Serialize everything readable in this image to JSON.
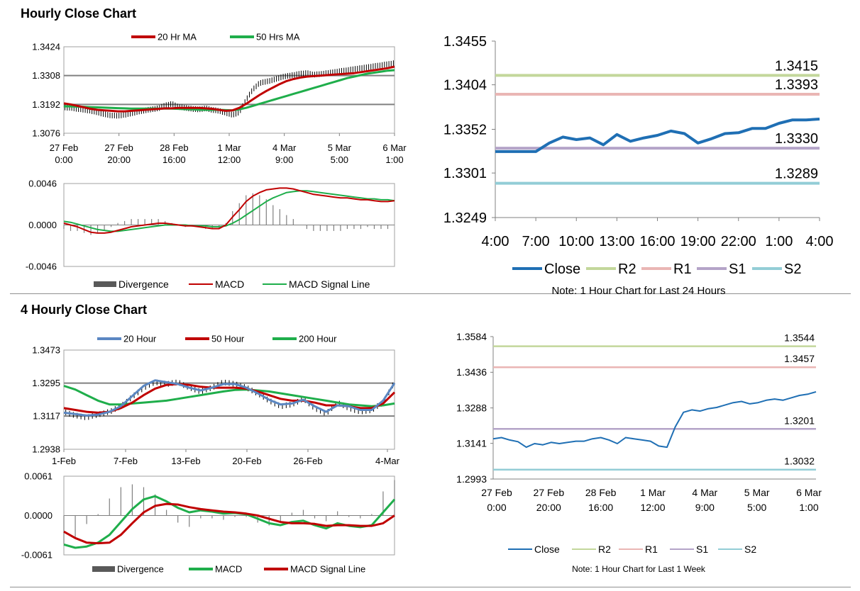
{
  "titles": {
    "hourly": "Hourly Close Chart",
    "four_hourly": "4 Hourly Close Chart"
  },
  "colors": {
    "red": "#c00000",
    "green": "#1fae4b",
    "blue": "#1f6fb4",
    "steel": "#5b87c2",
    "r2": "#c3d79b",
    "r1": "#eab6b4",
    "s1": "#b4a4c8",
    "s2": "#93cdd6",
    "divergence": "#595959"
  },
  "chart_data": [
    {
      "id": "hourly_price",
      "type": "line",
      "legend": [
        "20 Hr MA",
        "50 Hrs MA"
      ],
      "yticks": [
        "1.3424",
        "1.3308",
        "1.3192",
        "1.3076"
      ],
      "ylim": [
        1.3076,
        1.3424
      ],
      "xticks": [
        [
          "27 Feb",
          "0:00"
        ],
        [
          "27 Feb",
          "20:00"
        ],
        [
          "28 Feb",
          "16:00"
        ],
        [
          "1 Mar",
          "12:00"
        ],
        [
          "4 Mar",
          "9:00"
        ],
        [
          "5 Mar",
          "5:00"
        ],
        [
          "6 Mar",
          "1:00"
        ]
      ],
      "series": [
        {
          "name": "Close",
          "values": [
            1.318,
            1.3178,
            1.3174,
            1.317,
            1.3166,
            1.316,
            1.3152,
            1.3148,
            1.3146,
            1.315,
            1.3156,
            1.3162,
            1.3168,
            1.3172,
            1.3176,
            1.3188,
            1.3194,
            1.3182,
            1.3178,
            1.3174,
            1.3172,
            1.3176,
            1.317,
            1.3166,
            1.3158,
            1.315,
            1.316,
            1.321,
            1.3252,
            1.3278,
            1.3284,
            1.329,
            1.33,
            1.3306,
            1.331,
            1.3316,
            1.3318,
            1.3312,
            1.3314,
            1.3318,
            1.3322,
            1.3326,
            1.333,
            1.3334,
            1.3338,
            1.3342,
            1.3346,
            1.335,
            1.3354,
            1.3358
          ]
        },
        {
          "name": "20 Hr MA",
          "values": [
            1.3196,
            1.3192,
            1.3186,
            1.318,
            1.3174,
            1.317,
            1.3168,
            1.3166,
            1.3164,
            1.3164,
            1.3166,
            1.3168,
            1.317,
            1.3172,
            1.3174,
            1.3176,
            1.3176,
            1.3178,
            1.3178,
            1.3178,
            1.3178,
            1.3176,
            1.3174,
            1.317,
            1.3166,
            1.3168,
            1.3178,
            1.3194,
            1.3212,
            1.323,
            1.3246,
            1.326,
            1.3274,
            1.3286,
            1.3294,
            1.33,
            1.3304,
            1.3306,
            1.3308,
            1.331,
            1.3312,
            1.3314,
            1.3316,
            1.3318,
            1.3322,
            1.3326,
            1.333,
            1.3334,
            1.3338,
            1.3344
          ]
        },
        {
          "name": "50 Hrs MA",
          "values": [
            1.3184,
            1.3184,
            1.3183,
            1.3182,
            1.3181,
            1.318,
            1.3179,
            1.3178,
            1.3177,
            1.3176,
            1.3175,
            1.3175,
            1.3175,
            1.3175,
            1.3175,
            1.3175,
            1.3175,
            1.3174,
            1.3173,
            1.3172,
            1.3171,
            1.317,
            1.317,
            1.317,
            1.3169,
            1.3168,
            1.3172,
            1.3178,
            1.3186,
            1.3194,
            1.3202,
            1.321,
            1.3218,
            1.3226,
            1.3234,
            1.3242,
            1.325,
            1.3258,
            1.3266,
            1.3274,
            1.3282,
            1.329,
            1.3298,
            1.3304,
            1.331,
            1.3316,
            1.332,
            1.3324,
            1.3328,
            1.333
          ]
        }
      ]
    },
    {
      "id": "hourly_macd",
      "type": "line",
      "legend": [
        "Divergence",
        "MACD",
        "MACD Signal Line"
      ],
      "yticks": [
        "0.0046",
        "0.0000",
        "-0.0046"
      ],
      "ylim": [
        -0.0046,
        0.0046
      ],
      "series": [
        {
          "name": "MACD",
          "values": [
            0.0002,
            0.0,
            -0.0002,
            -0.0005,
            -0.0008,
            -0.0009,
            -0.0009,
            -0.0008,
            -0.0006,
            -0.0004,
            -0.0002,
            -0.0001,
            0.0,
            0.0001,
            0.0002,
            0.0002,
            0.0001,
            0.0,
            -0.0001,
            -0.0001,
            -0.0002,
            -0.0003,
            -0.0004,
            -0.0004,
            0.0,
            0.0009,
            0.0017,
            0.0026,
            0.0032,
            0.0036,
            0.0039,
            0.004,
            0.0041,
            0.0041,
            0.004,
            0.0038,
            0.0036,
            0.0034,
            0.0033,
            0.0032,
            0.0031,
            0.003,
            0.003,
            0.0029,
            0.0028,
            0.0028,
            0.0027,
            0.0026,
            0.0026,
            0.0027
          ]
        },
        {
          "name": "MACD Signal Line",
          "values": [
            0.0004,
            0.0003,
            0.0001,
            -0.0001,
            -0.0003,
            -0.0005,
            -0.0006,
            -0.0007,
            -0.0007,
            -0.0006,
            -0.0005,
            -0.0004,
            -0.0003,
            -0.0002,
            -0.0001,
            0.0,
            0.0,
            0.0,
            0.0,
            -0.0001,
            -0.0001,
            -0.0001,
            -0.0002,
            -0.0002,
            -0.0001,
            0.0002,
            0.0006,
            0.0011,
            0.0016,
            0.0021,
            0.0026,
            0.003,
            0.0033,
            0.0036,
            0.0037,
            0.0038,
            0.0038,
            0.0037,
            0.0036,
            0.0035,
            0.0034,
            0.0033,
            0.0032,
            0.0031,
            0.003,
            0.0029,
            0.0029,
            0.0028,
            0.0028,
            0.0027
          ]
        }
      ]
    },
    {
      "id": "hourly_24h",
      "type": "line",
      "legend": [
        "Close",
        "R2",
        "R1",
        "S1",
        "S2"
      ],
      "note": "Note: 1 Hour Chart for Last 24 Hours",
      "yticks": [
        "1.3455",
        "1.3404",
        "1.3352",
        "1.3301",
        "1.3249"
      ],
      "ylim": [
        1.3249,
        1.3455
      ],
      "xticks": [
        "4:00",
        "7:00",
        "10:00",
        "13:00",
        "16:00",
        "19:00",
        "22:00",
        "1:00",
        "4:00"
      ],
      "levels": {
        "R2": "1.3415",
        "R1": "1.3393",
        "S1": "1.3330",
        "S2": "1.3289"
      },
      "series": [
        {
          "name": "Close",
          "values": [
            1.3326,
            1.3326,
            1.3326,
            1.3326,
            1.3336,
            1.3343,
            1.334,
            1.3342,
            1.3334,
            1.3346,
            1.3338,
            1.3342,
            1.3345,
            1.335,
            1.3347,
            1.3336,
            1.3341,
            1.3347,
            1.3348,
            1.3353,
            1.3353,
            1.3359,
            1.3363,
            1.3363,
            1.3364
          ]
        }
      ]
    },
    {
      "id": "four_hourly_price",
      "type": "line",
      "legend": [
        "20 Hour",
        "50 Hour",
        "200 Hour"
      ],
      "yticks": [
        "1.3473",
        "1.3295",
        "1.3117",
        "1.2938"
      ],
      "ylim": [
        1.2938,
        1.3473
      ],
      "xticks": [
        "1-Feb",
        "7-Feb",
        "13-Feb",
        "20-Feb",
        "26-Feb",
        "4-Mar"
      ],
      "series": [
        {
          "name": "Close",
          "values": [
            1.314,
            1.312,
            1.311,
            1.3125,
            1.314,
            1.317,
            1.322,
            1.327,
            1.33,
            1.329,
            1.33,
            1.327,
            1.325,
            1.327,
            1.33,
            1.329,
            1.327,
            1.324,
            1.32,
            1.317,
            1.318,
            1.321,
            1.316,
            1.313,
            1.319,
            1.316,
            1.314,
            1.315,
            1.319,
            1.33
          ]
        },
        {
          "name": "20 Hour",
          "values": [
            1.3135,
            1.3128,
            1.312,
            1.3125,
            1.314,
            1.317,
            1.3225,
            1.328,
            1.331,
            1.33,
            1.329,
            1.327,
            1.3255,
            1.327,
            1.329,
            1.329,
            1.327,
            1.324,
            1.3205,
            1.318,
            1.3185,
            1.3205,
            1.317,
            1.314,
            1.3175,
            1.317,
            1.315,
            1.315,
            1.32,
            1.3295
          ]
        },
        {
          "name": "50 Hour",
          "values": [
            1.316,
            1.315,
            1.314,
            1.3135,
            1.314,
            1.316,
            1.319,
            1.323,
            1.3265,
            1.3285,
            1.329,
            1.3285,
            1.3275,
            1.327,
            1.327,
            1.327,
            1.3265,
            1.325,
            1.323,
            1.321,
            1.32,
            1.32,
            1.319,
            1.3175,
            1.3175,
            1.317,
            1.316,
            1.316,
            1.3185,
            1.3245
          ]
        },
        {
          "name": "200 Hour",
          "values": [
            1.328,
            1.326,
            1.323,
            1.32,
            1.318,
            1.318,
            1.3185,
            1.319,
            1.3195,
            1.32,
            1.321,
            1.322,
            1.323,
            1.324,
            1.325,
            1.3258,
            1.326,
            1.3255,
            1.325,
            1.324,
            1.323,
            1.322,
            1.321,
            1.32,
            1.319,
            1.318,
            1.3175,
            1.317,
            1.3175,
            1.3185
          ]
        }
      ]
    },
    {
      "id": "four_hourly_macd",
      "type": "line",
      "legend": [
        "Divergence",
        "MACD",
        "MACD Signal Line"
      ],
      "yticks": [
        "0.0061",
        "0.0000",
        "-0.0061"
      ],
      "ylim": [
        -0.0061,
        0.0061
      ],
      "series": [
        {
          "name": "MACD",
          "values": [
            -0.0045,
            -0.005,
            -0.0048,
            -0.0042,
            -0.003,
            -0.001,
            0.001,
            0.0025,
            0.003,
            0.0022,
            0.0012,
            0.0005,
            0.0008,
            0.0006,
            0.0003,
            0.0004,
            0.0002,
            -0.0005,
            -0.0012,
            -0.0015,
            -0.001,
            -0.0008,
            -0.0015,
            -0.002,
            -0.0012,
            -0.0016,
            -0.0018,
            -0.0015,
            0.0005,
            0.0025
          ]
        },
        {
          "name": "MACD Signal Line",
          "values": [
            -0.0025,
            -0.0035,
            -0.0042,
            -0.0043,
            -0.0042,
            -0.003,
            -0.0012,
            0.0005,
            0.0015,
            0.0018,
            0.0017,
            0.0013,
            0.001,
            0.0008,
            0.0006,
            0.0005,
            0.0003,
            0.0,
            -0.0005,
            -0.001,
            -0.0012,
            -0.0012,
            -0.0013,
            -0.0016,
            -0.0015,
            -0.0015,
            -0.0016,
            -0.0016,
            -0.0012,
            0.0
          ]
        }
      ]
    },
    {
      "id": "four_hourly_week",
      "type": "line",
      "legend": [
        "Close",
        "R2",
        "R1",
        "S1",
        "S2"
      ],
      "note": "Note: 1 Hour Chart for  Last 1 Week",
      "yticks": [
        "1.3584",
        "1.3436",
        "1.3288",
        "1.3141",
        "1.2993"
      ],
      "ylim": [
        1.2993,
        1.3584
      ],
      "xticks": [
        [
          "27 Feb",
          "0:00"
        ],
        [
          "27 Feb",
          "20:00"
        ],
        [
          "28 Feb",
          "16:00"
        ],
        [
          "1 Mar",
          "12:00"
        ],
        [
          "4 Mar",
          "9:00"
        ],
        [
          "5 Mar",
          "5:00"
        ],
        [
          "6 Mar",
          "1:00"
        ]
      ],
      "levels": {
        "R2": "1.3544",
        "R1": "1.3457",
        "S1": "1.3201",
        "S2": "1.3032"
      },
      "series": [
        {
          "name": "Close",
          "values": [
            1.316,
            1.3165,
            1.3155,
            1.3148,
            1.3125,
            1.314,
            1.3135,
            1.3145,
            1.314,
            1.3145,
            1.315,
            1.315,
            1.316,
            1.3165,
            1.3155,
            1.314,
            1.3165,
            1.316,
            1.3155,
            1.315,
            1.313,
            1.3125,
            1.321,
            1.327,
            1.328,
            1.3275,
            1.3285,
            1.329,
            1.33,
            1.331,
            1.3315,
            1.3305,
            1.331,
            1.332,
            1.3325,
            1.332,
            1.333,
            1.334,
            1.3345,
            1.3355
          ]
        }
      ]
    }
  ]
}
